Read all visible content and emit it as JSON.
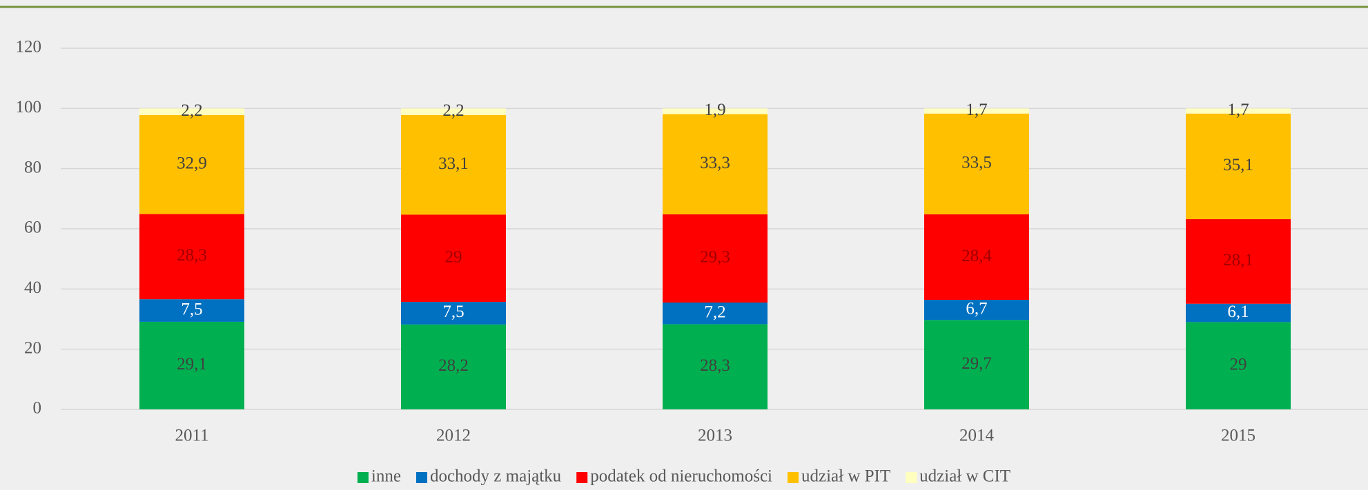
{
  "chart_data": {
    "type": "stacked_bar",
    "categories": [
      "2011",
      "2012",
      "2013",
      "2014",
      "2015"
    ],
    "series": [
      {
        "name": "inne",
        "color": "#00b050",
        "label_color": "#404040",
        "values": [
          29.1,
          28.2,
          28.3,
          29.7,
          29
        ],
        "value_labels": [
          "29,1",
          "28,2",
          "28,3",
          "29,7",
          "29"
        ]
      },
      {
        "name": "dochody z majątku",
        "color": "#0070c0",
        "label_color": "#ffffff",
        "values": [
          7.5,
          7.5,
          7.2,
          6.7,
          6.1
        ],
        "value_labels": [
          "7,5",
          "7,5",
          "7,2",
          "6,7",
          "6,1"
        ]
      },
      {
        "name": "podatek od nieruchomości",
        "color": "#ff0000",
        "label_color": "#a00000",
        "values": [
          28.3,
          29,
          29.3,
          28.4,
          28.1
        ],
        "value_labels": [
          "28,3",
          "29",
          "29,3",
          "28,4",
          "28,1"
        ]
      },
      {
        "name": "udział w PIT",
        "color": "#ffc000",
        "label_color": "#404040",
        "values": [
          32.9,
          33.1,
          33.3,
          33.5,
          35.1
        ],
        "value_labels": [
          "32,9",
          "33,1",
          "33,3",
          "33,5",
          "35,1"
        ]
      },
      {
        "name": "udział w CIT",
        "color": "#ffffc0",
        "label_color": "#404040",
        "values": [
          2.2,
          2.2,
          1.9,
          1.7,
          1.7
        ],
        "value_labels": [
          "2,2",
          "2,2",
          "1,9",
          "1,7",
          "1,7"
        ]
      }
    ],
    "ylim": [
      0,
      120
    ],
    "yticks": [
      0,
      20,
      40,
      60,
      80,
      100,
      120
    ],
    "grid": true,
    "legend": "bottom"
  }
}
